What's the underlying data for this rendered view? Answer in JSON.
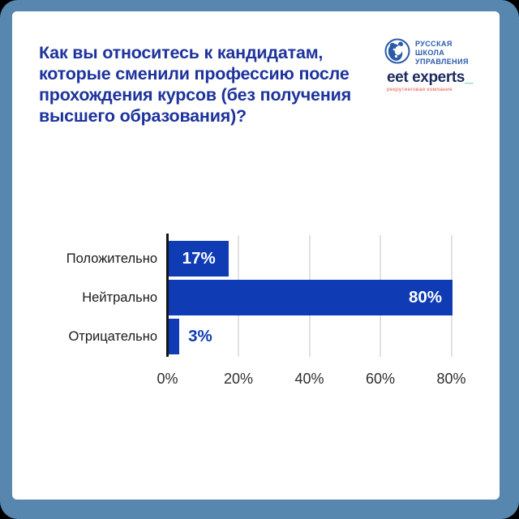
{
  "frame": {
    "border_color": "#5786ae",
    "card_background": "#ffffff",
    "page_background": "#000000"
  },
  "title": {
    "lines": [
      "Как вы относитесь к кандидатам,",
      "которые сменили профессию после",
      "прохождения курсов (без получения",
      "высшего образования)?"
    ],
    "color": "#1d339c"
  },
  "logos": {
    "rsu": {
      "lines": [
        "РУССКАЯ",
        "ШКОЛА",
        "УПРАВЛЕНИЯ"
      ],
      "color": "#2b5aa8"
    },
    "get_experts": {
      "wordmark": "eet experts",
      "underscore": "_",
      "wordmark_color": "#1c2a5e",
      "underscore_color": "#35c4b5",
      "tagline": "рекрутинговая компания",
      "tagline_color": "#e2574b"
    }
  },
  "chart_data": {
    "type": "bar",
    "orientation": "horizontal",
    "categories": [
      "Положительно",
      "Нейтрально",
      "Отрицательно"
    ],
    "values": [
      17,
      80,
      3
    ],
    "value_labels": [
      "17%",
      "80%",
      "3%"
    ],
    "x_ticks": [
      "0%",
      "20%",
      "40%",
      "60%",
      "80%"
    ],
    "x_tick_values": [
      0,
      20,
      40,
      60,
      80
    ],
    "xlim": [
      0,
      100
    ],
    "grid": true,
    "legend": false,
    "bar_color": "#0f3cb5",
    "value_label_inside_color": "#ffffff",
    "value_label_outside_color": "#0f3cb5",
    "axis_line_color": "#141414",
    "gridline_color": "#e2e2e2"
  }
}
